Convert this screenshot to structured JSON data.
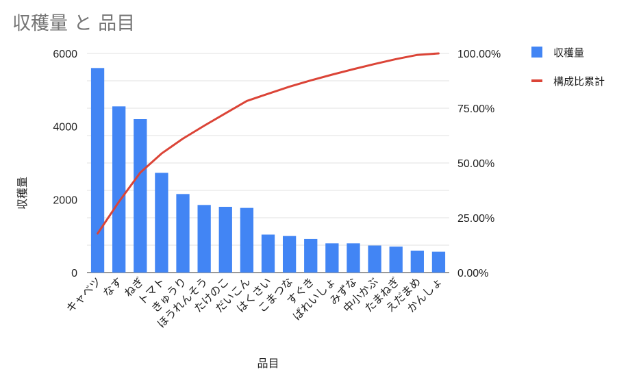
{
  "chart_data": {
    "type": "bar",
    "title": "収穫量 と 品目",
    "xlabel": "品目",
    "ylabel": "収穫量",
    "categories": [
      "キャベツ",
      "なす",
      "ねぎ",
      "トマト",
      "きゅうり",
      "ほうれんそう",
      "たけのこ",
      "だいこん",
      "はくさい",
      "こまつな",
      "すぐき",
      "ばれいしょ",
      "みずな",
      "中小かぶ",
      "たまねぎ",
      "えだまめ",
      "かんしょ"
    ],
    "series": [
      {
        "name": "収穫量",
        "type": "bar",
        "axis": "left",
        "color": "#4285f4",
        "values": [
          5600,
          4550,
          4200,
          2730,
          2150,
          1850,
          1800,
          1770,
          1040,
          1000,
          920,
          800,
          800,
          740,
          710,
          600,
          570
        ]
      },
      {
        "name": "構成比累計",
        "type": "line",
        "axis": "right",
        "color": "#db4437",
        "values": [
          17.8,
          32.3,
          45.6,
          54.3,
          61.1,
          67.0,
          72.7,
          78.3,
          81.6,
          84.8,
          87.7,
          90.3,
          92.8,
          95.2,
          97.4,
          99.3,
          100.0
        ]
      }
    ],
    "ylim": [
      0,
      6000
    ],
    "y_ticks": [
      "0",
      "2000",
      "4000",
      "6000"
    ],
    "y2lim": [
      0,
      100
    ],
    "y2_ticks": [
      "0.00%",
      "25.00%",
      "50.00%",
      "75.00%",
      "100.00%"
    ],
    "grid": true,
    "legend_position": "right"
  }
}
